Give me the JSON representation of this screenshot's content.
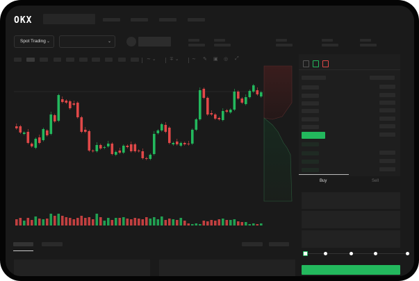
{
  "header": {
    "logo": "OKX"
  },
  "controls": {
    "market_select": "Spot Trading",
    "pair_select": ""
  },
  "toolbar": {
    "icons": [
      "indicator-icon",
      "line-tool-icon",
      "pencil-icon",
      "camera-icon",
      "settings-icon",
      "fullscreen-icon"
    ]
  },
  "orderbook": {
    "view_icons": [
      "both-sides-icon",
      "bids-only-icon",
      "asks-only-icon"
    ]
  },
  "trade": {
    "tabs": [
      "Buy",
      "Sell"
    ],
    "active_tab": "Buy",
    "slider_value_percent": 0
  },
  "colors": {
    "up": "#23b85d",
    "down": "#e04848",
    "background": "#1a1a1a",
    "buy_button": "#23b85d"
  },
  "chart_data": {
    "type": "candlestick",
    "title": "",
    "xlabel": "",
    "ylabel": "",
    "grid": false,
    "candles": [
      [
        58,
        55
      ],
      [
        58,
        49
      ],
      [
        47,
        49
      ],
      [
        50,
        34
      ],
      [
        33,
        29
      ],
      [
        27,
        40
      ],
      [
        42,
        34
      ],
      [
        38,
        54
      ],
      [
        52,
        45
      ],
      [
        47,
        75
      ],
      [
        74,
        65
      ],
      [
        66,
        103
      ],
      [
        97,
        93
      ],
      [
        95,
        92
      ],
      [
        94,
        84
      ],
      [
        91,
        89
      ],
      [
        92,
        71
      ],
      [
        71,
        50
      ],
      [
        53,
        50
      ],
      [
        51,
        23
      ],
      [
        23,
        22
      ],
      [
        22,
        31
      ],
      [
        31,
        26
      ],
      [
        27,
        28
      ],
      [
        29,
        33
      ],
      [
        33,
        18
      ],
      [
        17,
        21
      ],
      [
        23,
        20
      ],
      [
        20,
        30
      ],
      [
        30,
        28
      ],
      [
        32,
        22
      ],
      [
        32,
        22
      ],
      [
        23,
        22
      ],
      [
        22,
        12
      ],
      [
        12,
        11
      ],
      [
        11,
        17
      ],
      [
        18,
        47
      ],
      [
        48,
        52
      ],
      [
        52,
        61
      ],
      [
        60,
        50
      ],
      [
        56,
        34
      ],
      [
        32,
        34
      ],
      [
        36,
        32
      ],
      [
        30,
        34
      ],
      [
        34,
        32
      ],
      [
        33,
        32
      ],
      [
        33,
        53
      ],
      [
        53,
        68
      ],
      [
        68,
        110
      ],
      [
        112,
        99
      ],
      [
        99,
        75
      ],
      [
        77,
        75
      ],
      [
        75,
        69
      ],
      [
        70,
        68
      ],
      [
        67,
        80
      ],
      [
        81,
        79
      ],
      [
        78,
        82
      ],
      [
        82,
        108
      ],
      [
        108,
        98
      ],
      [
        98,
        92
      ],
      [
        90,
        100
      ],
      [
        100,
        109
      ],
      [
        108,
        117
      ],
      [
        110,
        104
      ],
      [
        101,
        107
      ]
    ],
    "volume": [
      9,
      11,
      7,
      11,
      8,
      13,
      10,
      9,
      10,
      17,
      14,
      17,
      14,
      12,
      11,
      9,
      11,
      14,
      11,
      12,
      9,
      17,
      12,
      7,
      11,
      8,
      11,
      11,
      12,
      10,
      9,
      11,
      10,
      9,
      12,
      10,
      12,
      9,
      13,
      8,
      10,
      9,
      8,
      11,
      7,
      3,
      2,
      3,
      2,
      7,
      6,
      8,
      7,
      9,
      10,
      8,
      8,
      9,
      6,
      5,
      5,
      2,
      3,
      2,
      3
    ],
    "reference_line": 108
  }
}
